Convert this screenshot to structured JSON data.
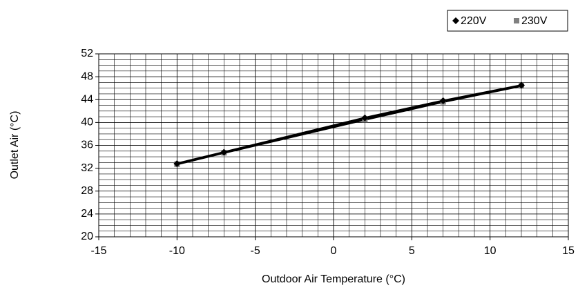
{
  "chart_data": {
    "type": "line",
    "x_label": "Outdoor Air Temperature (°C)",
    "y_label": "Outlet Air (°C)",
    "x": [
      -10,
      -7,
      2,
      7,
      12
    ],
    "series": [
      {
        "name": "220V",
        "color": "#000000",
        "marker": "diamond",
        "values": [
          32.8,
          34.8,
          40.8,
          43.8,
          46.5
        ]
      },
      {
        "name": "230V",
        "color": "#808080",
        "marker": "square",
        "values": [
          32.7,
          34.7,
          40.5,
          43.6,
          46.4
        ]
      }
    ],
    "xlim": [
      -15,
      15
    ],
    "xticks": [
      -15,
      -10,
      -5,
      0,
      5,
      10,
      15
    ],
    "ylim": [
      20,
      52
    ],
    "yticks": [
      20,
      24,
      28,
      32,
      36,
      40,
      44,
      48,
      52
    ],
    "grid": true,
    "xminorstep": 1,
    "yminorstep": 1,
    "legend": "top-right"
  }
}
